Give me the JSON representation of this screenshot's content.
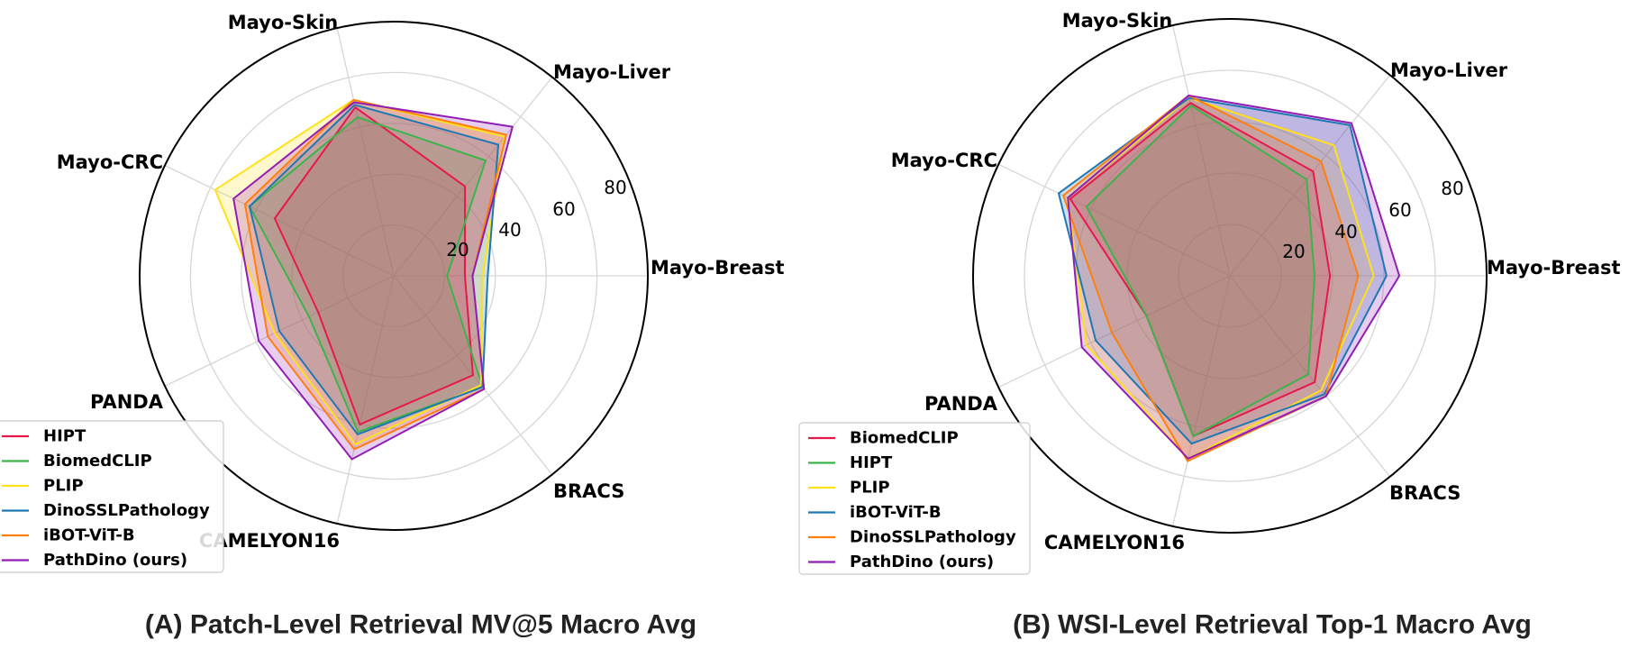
{
  "chart_data": [
    {
      "type": "radar",
      "title": "(A)  Patch-Level Retrieval MV@5 Macro Avg",
      "axes": [
        "Mayo-Breast",
        "Mayo-Liver",
        "Mayo-Skin",
        "Mayo-CRC",
        "PANDA",
        "CAMELYON16",
        "BRACS"
      ],
      "rlim": [
        0,
        100
      ],
      "rticks": [
        20,
        40,
        60,
        80
      ],
      "grid": true,
      "legend_position": "lower-left",
      "series": [
        {
          "name": "HIPT",
          "color": "#e6194b",
          "values": [
            28,
            45,
            68,
            52,
            33,
            60,
            50
          ]
        },
        {
          "name": "BiomedCLIP",
          "color": "#3cb44b",
          "values": [
            21,
            58,
            64,
            63,
            37,
            63,
            56
          ]
        },
        {
          "name": "PLIP",
          "color": "#ffe119",
          "values": [
            35,
            70,
            71,
            78,
            52,
            68,
            55
          ]
        },
        {
          "name": "DinoSSLPathology",
          "color": "#1f77b4",
          "values": [
            37,
            66,
            69,
            63,
            50,
            64,
            56
          ]
        },
        {
          "name": "iBOT-ViT-B",
          "color": "#ff7f0e",
          "values": [
            31,
            71,
            71,
            65,
            55,
            70,
            57
          ]
        },
        {
          "name": "PathDino (ours)",
          "color": "#911eb4",
          "values": [
            31,
            75,
            70,
            70,
            59,
            74,
            57
          ]
        }
      ]
    },
    {
      "type": "radar",
      "title": "(B)  WSI-Level Retrieval  Top-1 Macro Avg",
      "axes": [
        "Mayo-Breast",
        "Mayo-Liver",
        "Mayo-Skin",
        "Mayo-CRC",
        "PANDA",
        "CAMELYON16",
        "BRACS"
      ],
      "rlim": [
        0,
        100
      ],
      "rticks": [
        20,
        40,
        60,
        80
      ],
      "grid": true,
      "legend_position": "lower-left",
      "series": [
        {
          "name": "BiomedCLIP",
          "color": "#e6194b",
          "values": [
            39,
            52,
            69,
            69,
            36,
            64,
            53
          ]
        },
        {
          "name": "HIPT",
          "color": "#3cb44b",
          "values": [
            33,
            48,
            68,
            62,
            36,
            64,
            49
          ]
        },
        {
          "name": "PLIP",
          "color": "#ffe119",
          "values": [
            56,
            65,
            71,
            70,
            62,
            73,
            57
          ]
        },
        {
          "name": "iBOT-ViT-B",
          "color": "#1f77b4",
          "values": [
            61,
            75,
            71,
            74,
            58,
            67,
            59
          ]
        },
        {
          "name": "DinoSSLPathology",
          "color": "#ff7f0e",
          "values": [
            50,
            57,
            72,
            72,
            51,
            74,
            60
          ]
        },
        {
          "name": "PathDino (ours)",
          "color": "#911eb4",
          "values": [
            66,
            76,
            72,
            70,
            64,
            73,
            60
          ]
        }
      ]
    }
  ]
}
